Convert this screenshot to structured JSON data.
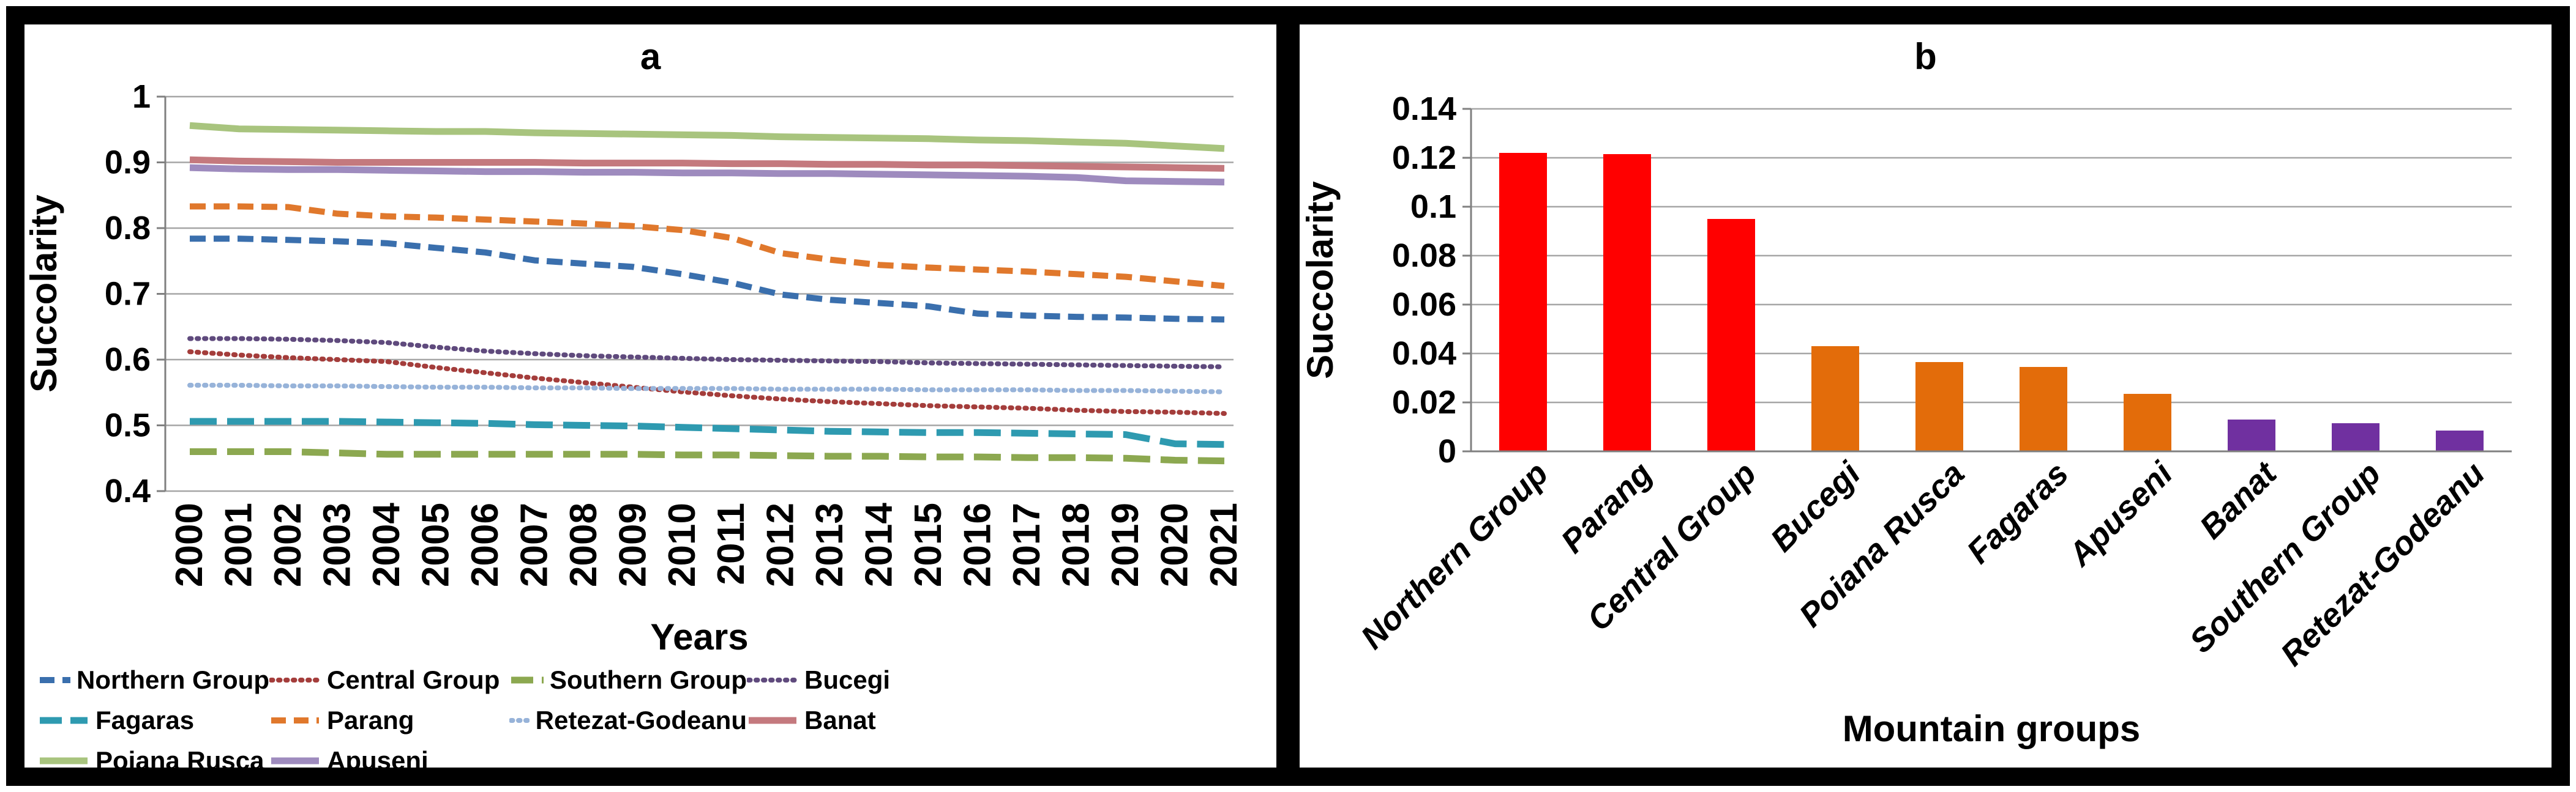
{
  "figure": {
    "panel_a_label": "a",
    "panel_b_label": "b"
  },
  "chart_data": [
    {
      "id": "a",
      "type": "line",
      "title": "a",
      "xlabel": "Years",
      "ylabel": "Succolarity",
      "ylim": [
        0.4,
        1.0
      ],
      "grid": true,
      "legend_position": "bottom",
      "ytick_labels": [
        "1",
        "0.9",
        "0.8",
        "0.7",
        "0.6",
        "0.5",
        "0.4"
      ],
      "ytick_values": [
        1.0,
        0.9,
        0.8,
        0.7,
        0.6,
        0.5,
        0.4
      ],
      "x": [
        "2000",
        "2001",
        "2002",
        "2003",
        "2004",
        "2005",
        "2006",
        "2007",
        "2008",
        "2009",
        "2010",
        "2011",
        "2012",
        "2013",
        "2014",
        "2015",
        "2016",
        "2017",
        "2018",
        "2019",
        "2020",
        "2021"
      ],
      "legend_order": [
        "Northern Group",
        "Central Group",
        "Southern Group",
        "Bucegi",
        "Fagaras",
        "Parang",
        "Retezat-Godeanu",
        "Banat",
        "Poiana Rusca",
        "Apuseni"
      ],
      "series": [
        {
          "name": "Northern Group",
          "color": "#3A6FAD",
          "style": "dash",
          "values": [
            0.784,
            0.784,
            0.782,
            0.78,
            0.777,
            0.77,
            0.763,
            0.751,
            0.746,
            0.741,
            0.73,
            0.717,
            0.699,
            0.691,
            0.686,
            0.681,
            0.67,
            0.667,
            0.665,
            0.664,
            0.662,
            0.661
          ]
        },
        {
          "name": "Central Group",
          "color": "#A43D3B",
          "style": "dot",
          "values": [
            0.612,
            0.607,
            0.603,
            0.6,
            0.597,
            0.588,
            0.58,
            0.572,
            0.565,
            0.558,
            0.551,
            0.545,
            0.54,
            0.536,
            0.533,
            0.53,
            0.528,
            0.526,
            0.523,
            0.521,
            0.52,
            0.518
          ]
        },
        {
          "name": "Southern Group",
          "color": "#8CA850",
          "style": "longdash",
          "values": [
            0.46,
            0.46,
            0.46,
            0.458,
            0.456,
            0.456,
            0.456,
            0.456,
            0.456,
            0.456,
            0.455,
            0.455,
            0.454,
            0.453,
            0.453,
            0.452,
            0.452,
            0.451,
            0.451,
            0.45,
            0.447,
            0.446
          ]
        },
        {
          "name": "Bucegi",
          "color": "#5F4A7D",
          "style": "dot",
          "values": [
            0.632,
            0.632,
            0.631,
            0.629,
            0.626,
            0.619,
            0.613,
            0.609,
            0.606,
            0.604,
            0.602,
            0.6,
            0.599,
            0.598,
            0.597,
            0.595,
            0.594,
            0.593,
            0.592,
            0.591,
            0.59,
            0.589
          ]
        },
        {
          "name": "Fagaras",
          "color": "#2E9AB0",
          "style": "longdash",
          "values": [
            0.506,
            0.506,
            0.506,
            0.506,
            0.505,
            0.504,
            0.503,
            0.501,
            0.5,
            0.499,
            0.497,
            0.495,
            0.493,
            0.491,
            0.49,
            0.489,
            0.489,
            0.488,
            0.487,
            0.486,
            0.472,
            0.471
          ]
        },
        {
          "name": "Parang",
          "color": "#E0782C",
          "style": "dash",
          "values": [
            0.833,
            0.833,
            0.832,
            0.822,
            0.818,
            0.816,
            0.813,
            0.81,
            0.807,
            0.803,
            0.797,
            0.785,
            0.762,
            0.752,
            0.744,
            0.74,
            0.737,
            0.734,
            0.73,
            0.726,
            0.719,
            0.712
          ]
        },
        {
          "name": "Retezat-Godeanu",
          "color": "#97B3D9",
          "style": "dot",
          "values": [
            0.561,
            0.561,
            0.56,
            0.56,
            0.559,
            0.558,
            0.558,
            0.557,
            0.557,
            0.556,
            0.556,
            0.556,
            0.555,
            0.555,
            0.555,
            0.554,
            0.554,
            0.554,
            0.553,
            0.553,
            0.552,
            0.551
          ]
        },
        {
          "name": "Banat",
          "color": "#C4797E",
          "style": "solid",
          "values": [
            0.904,
            0.902,
            0.901,
            0.9,
            0.9,
            0.9,
            0.9,
            0.9,
            0.899,
            0.899,
            0.899,
            0.898,
            0.898,
            0.897,
            0.897,
            0.896,
            0.896,
            0.895,
            0.894,
            0.893,
            0.892,
            0.891
          ]
        },
        {
          "name": "Poiana Rusca",
          "color": "#A8C47E",
          "style": "solid",
          "values": [
            0.956,
            0.951,
            0.95,
            0.949,
            0.948,
            0.947,
            0.947,
            0.945,
            0.944,
            0.943,
            0.942,
            0.941,
            0.939,
            0.938,
            0.937,
            0.936,
            0.934,
            0.933,
            0.931,
            0.929,
            0.925,
            0.921
          ]
        },
        {
          "name": "Apuseni",
          "color": "#9E8BBE",
          "style": "solid",
          "values": [
            0.892,
            0.89,
            0.889,
            0.889,
            0.888,
            0.887,
            0.886,
            0.886,
            0.885,
            0.885,
            0.884,
            0.884,
            0.883,
            0.883,
            0.882,
            0.881,
            0.88,
            0.879,
            0.877,
            0.872,
            0.871,
            0.87
          ]
        }
      ]
    },
    {
      "id": "b",
      "type": "bar",
      "title": "b",
      "xlabel": "Mountain groups",
      "ylabel": "Succolarity",
      "ylim": [
        0,
        0.14
      ],
      "grid": true,
      "ytick_labels": [
        "0.14",
        "0.12",
        "0.1",
        "0.08",
        "0.06",
        "0.04",
        "0.02",
        "0"
      ],
      "ytick_values": [
        0.14,
        0.12,
        0.1,
        0.08,
        0.06,
        0.04,
        0.02,
        0
      ],
      "categories": [
        "Northern Group",
        "Parang",
        "Central Group",
        "Bucegi",
        "Poiana Rusca",
        "Fagaras",
        "Apuseni",
        "Banat",
        "Southern Group",
        "Retezat-Godeanu"
      ],
      "values": [
        0.122,
        0.1215,
        0.095,
        0.043,
        0.0365,
        0.0345,
        0.0235,
        0.013,
        0.0115,
        0.0085
      ],
      "colors": [
        "#FF0000",
        "#FF0000",
        "#FF0000",
        "#E36C0A",
        "#E36C0A",
        "#E36C0A",
        "#E36C0A",
        "#7030A0",
        "#7030A0",
        "#7030A0"
      ]
    }
  ],
  "style": {
    "grid_color": "#A6A6A6",
    "axis_color": "#808080",
    "text_color": "#000000"
  }
}
